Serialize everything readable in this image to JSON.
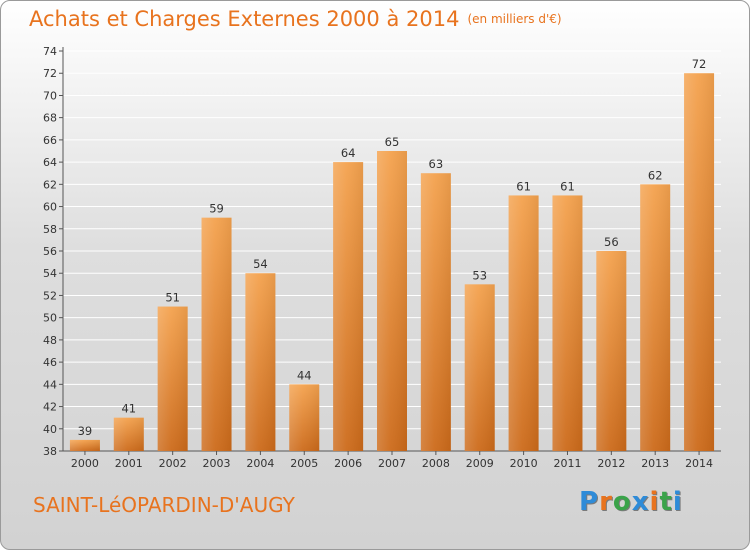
{
  "header": {
    "title": "Achats et Charges Externes 2000 à 2014",
    "unit": "(en milliers d'€)"
  },
  "footer": {
    "commune": "SAINT-LéOPARDIN-D'AUGY",
    "logo_text": "Proxiti",
    "logo_colors": [
      "#2e8bd8",
      "#e8731e",
      "#3aa34a",
      "#2e8bd8",
      "#e8731e",
      "#3aa34a",
      "#2e8bd8"
    ]
  },
  "colors": {
    "accent": "#e8731e",
    "bar_top": "#f4a24e",
    "bar_bottom": "#cc6a1a",
    "grid": "#ffffff"
  },
  "chart_data": {
    "type": "bar",
    "categories": [
      "2000",
      "2001",
      "2002",
      "2003",
      "2004",
      "2005",
      "2006",
      "2007",
      "2008",
      "2009",
      "2010",
      "2011",
      "2012",
      "2013",
      "2014"
    ],
    "values": [
      39,
      41,
      51,
      59,
      54,
      44,
      64,
      65,
      63,
      53,
      61,
      61,
      56,
      62,
      72
    ],
    "title": "Achats et Charges Externes 2000 à 2014",
    "ylim": [
      38,
      74
    ],
    "yticks": [
      38,
      40,
      42,
      44,
      46,
      48,
      50,
      52,
      54,
      56,
      58,
      60,
      62,
      64,
      66,
      68,
      70,
      72,
      74
    ],
    "grid": true,
    "data_labels": true
  }
}
